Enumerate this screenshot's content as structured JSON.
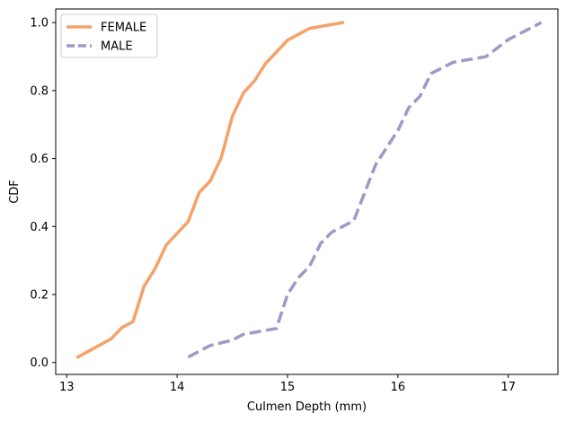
{
  "chart_data": {
    "type": "line",
    "xlabel": "Culmen Depth (mm)",
    "ylabel": "CDF",
    "xlim": [
      12.9,
      17.45
    ],
    "ylim": [
      -0.035,
      1.04
    ],
    "x_ticks": [
      13,
      14,
      15,
      16,
      17
    ],
    "y_ticks": [
      0.0,
      0.2,
      0.4,
      0.6,
      0.8,
      1.0
    ],
    "x_tick_labels": [
      "13",
      "14",
      "15",
      "16",
      "17"
    ],
    "y_tick_labels": [
      "0.0",
      "0.2",
      "0.4",
      "0.6",
      "0.8",
      "1.0"
    ],
    "grid": false,
    "legend_position": "top-left",
    "series": [
      {
        "name": "FEMALE",
        "color": "#f4a26a",
        "style": "solid",
        "x": [
          13.1,
          13.4,
          13.5,
          13.6,
          13.7,
          13.8,
          13.9,
          14.0,
          14.1,
          14.2,
          14.3,
          14.4,
          14.5,
          14.6,
          14.7,
          14.8,
          15.0,
          15.2,
          15.5
        ],
        "y": [
          0.016,
          0.069,
          0.103,
          0.12,
          0.224,
          0.276,
          0.345,
          0.38,
          0.414,
          0.5,
          0.534,
          0.603,
          0.724,
          0.793,
          0.828,
          0.879,
          0.948,
          0.983,
          1.0
        ]
      },
      {
        "name": "MALE",
        "color": "#9e9ac8",
        "style": "dashed",
        "x": [
          14.1,
          14.3,
          14.5,
          14.6,
          14.9,
          15.0,
          15.1,
          15.2,
          15.3,
          15.4,
          15.6,
          15.7,
          15.8,
          16.0,
          16.1,
          16.2,
          16.3,
          16.5,
          16.8,
          17.0,
          17.3
        ],
        "y": [
          0.016,
          0.05,
          0.066,
          0.083,
          0.1,
          0.2,
          0.25,
          0.283,
          0.35,
          0.383,
          0.417,
          0.5,
          0.583,
          0.683,
          0.75,
          0.783,
          0.85,
          0.883,
          0.9,
          0.95,
          1.0
        ]
      }
    ]
  }
}
